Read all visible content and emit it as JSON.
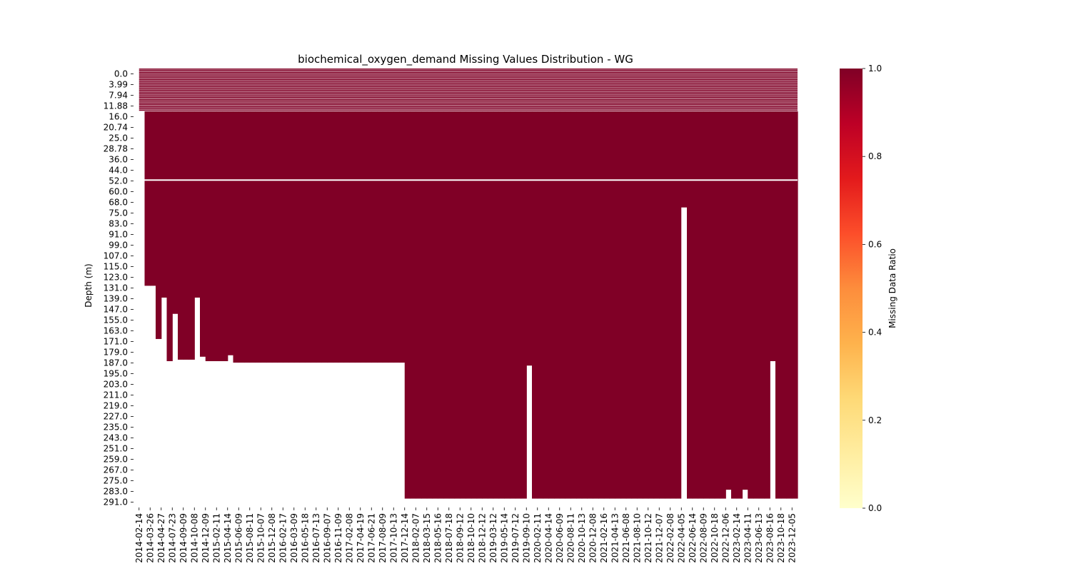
{
  "chart_data": {
    "type": "heatmap",
    "title": "biochemical_oxygen_demand Missing Values Distribution - WG",
    "xlabel": "",
    "ylabel": "Depth (m)",
    "colorbar_label": "Missing Data Ratio",
    "colorbar_ticks": [
      "0.0",
      "0.2",
      "0.4",
      "0.6",
      "0.8",
      "1.0"
    ],
    "color_scale": "YlOrRd",
    "color_missing_full": "#800026",
    "color_no_data": "#ffffff",
    "x_tick_labels": [
      "2014-02-14",
      "2014-03-26",
      "2014-04-27",
      "2014-07-23",
      "2014-09-09",
      "2014-10-08",
      "2014-12-09",
      "2015-02-11",
      "2015-04-14",
      "2015-06-09",
      "2015-08-11",
      "2015-10-07",
      "2015-12-08",
      "2016-02-17",
      "2016-03-09",
      "2016-05-18",
      "2016-07-13",
      "2016-09-07",
      "2016-11-09",
      "2017-02-08",
      "2017-04-19",
      "2017-06-21",
      "2017-08-09",
      "2017-10-13",
      "2017-12-14",
      "2018-02-07",
      "2018-03-15",
      "2018-05-16",
      "2018-07-18",
      "2018-09-12",
      "2018-10-10",
      "2018-12-12",
      "2019-03-12",
      "2019-05-14",
      "2019-07-12",
      "2019-09-10",
      "2020-02-11",
      "2020-04-14",
      "2020-06-09",
      "2020-08-11",
      "2020-10-13",
      "2020-12-08",
      "2021-02-16",
      "2021-04-13",
      "2021-06-08",
      "2021-08-10",
      "2021-10-12",
      "2021-12-07",
      "2022-02-08",
      "2022-04-05",
      "2022-06-14",
      "2022-08-09",
      "2022-10-18",
      "2022-12-06",
      "2023-02-14",
      "2023-04-11",
      "2023-06-13",
      "2023-08-16",
      "2023-10-18",
      "2023-12-05"
    ],
    "y_tick_labels": [
      "0.0",
      "3.99",
      "7.94",
      "11.88",
      "16.0",
      "20.74",
      "25.0",
      "28.78",
      "36.0",
      "44.0",
      "52.0",
      "60.0",
      "68.0",
      "75.0",
      "83.0",
      "91.0",
      "99.0",
      "107.0",
      "115.0",
      "123.0",
      "131.0",
      "139.0",
      "147.0",
      "155.0",
      "163.0",
      "171.0",
      "179.0",
      "187.0",
      "195.0",
      "203.0",
      "211.0",
      "219.0",
      "227.0",
      "235.0",
      "243.0",
      "251.0",
      "259.0",
      "267.0",
      "275.0",
      "283.0",
      "291.0"
    ],
    "n_columns": 120,
    "depth_max": 297,
    "shallow_depth_limit": 29,
    "column_max_depth": [
      "col 0-1: upper layers only",
      "col 2-3: to 147.0 (col 4), to 183.0 (col 5)",
      "col 6: to 155.0, col 7: to 198.0, col 8: to 166.0",
      "col 9-11: to ~197.0, col 12: to 155.0, col 13: to 195.0",
      "col 14-16: to ~198.0, col 17: to ~194.0, col 18-23: to ~198.0",
      "col 24: gap column, col 25-49: to ~199.0",
      "col 50-99: to ~291.0 with col 71: to ~201.0",
      "col 100-119: to ~291.0 with col 99: gap above 95.0, col 115: to ~198.0"
    ]
  }
}
